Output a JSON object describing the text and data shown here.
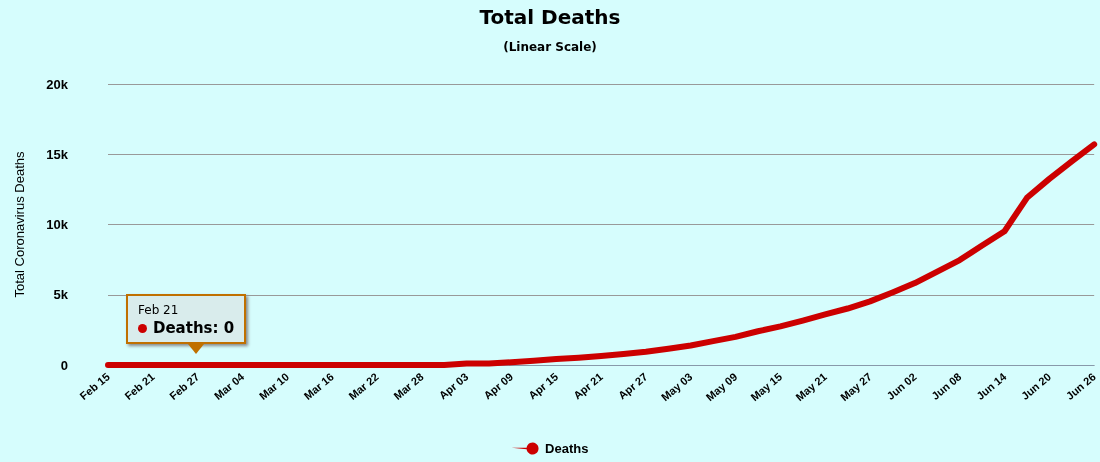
{
  "chart_data": {
    "type": "line",
    "title": "Total Deaths",
    "subtitle": "(Linear Scale)",
    "ylabel": "Total Coronavirus Deaths",
    "categories": [
      "Feb 15",
      null,
      "Feb 21",
      null,
      "Feb 27",
      null,
      "Mar 04",
      null,
      "Mar 10",
      null,
      "Mar 16",
      null,
      "Mar 22",
      null,
      "Mar 28",
      null,
      "Apr 03",
      null,
      "Apr 09",
      null,
      "Apr 15",
      null,
      "Apr 21",
      null,
      "Apr 27",
      null,
      "May 03",
      null,
      "May 09",
      null,
      "May 15",
      null,
      "May 21",
      null,
      "May 27",
      null,
      "Jun 02",
      null,
      "Jun 08",
      null,
      "Jun 14",
      null,
      "Jun 20",
      null,
      "Jun 26"
    ],
    "series": [
      {
        "name": "Deaths",
        "color": "#cc0000",
        "values": [
          0,
          0,
          0,
          0,
          0,
          0,
          0,
          0,
          0,
          0,
          0,
          0,
          0,
          0,
          0,
          0,
          100,
          100,
          200,
          300,
          420,
          520,
          640,
          780,
          940,
          1150,
          1390,
          1700,
          2000,
          2400,
          2750,
          3160,
          3600,
          4020,
          4530,
          5160,
          5830,
          6650,
          7470,
          8500,
          9520,
          11900,
          13250,
          14500,
          15700
        ]
      }
    ],
    "ylim": [
      0,
      20000
    ],
    "yticks": [
      0,
      {
        "value": 5000,
        "label": "5k"
      },
      {
        "value": 10000,
        "label": "10k"
      },
      {
        "value": 15000,
        "label": "15k"
      },
      {
        "value": 20000,
        "label": "20k"
      }
    ],
    "grid": "y",
    "legend": "bottom",
    "marker": "none",
    "line_style": "solid",
    "annotations": [
      "Feb 21",
      "Deaths: 0"
    ]
  }
}
